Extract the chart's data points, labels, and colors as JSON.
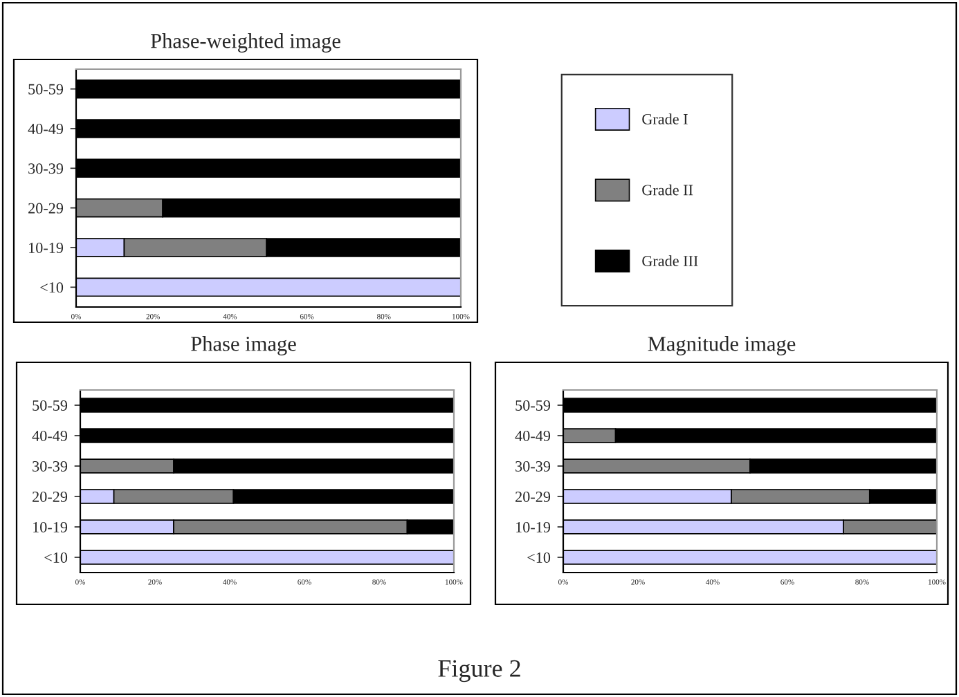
{
  "chart_data": [
    {
      "type": "bar",
      "orientation": "horizontal",
      "stacked": true,
      "title": "Phase-weighted image",
      "categories": [
        "50-59",
        "40-49",
        "30-39",
        "20-29",
        "10-19",
        "<10"
      ],
      "series": [
        {
          "name": "Grade I",
          "color": "#ccccff",
          "values": [
            0,
            0,
            0,
            0,
            12.5,
            100
          ]
        },
        {
          "name": "Grade II",
          "color": "#808080",
          "values": [
            0,
            0,
            0,
            22.5,
            37,
            0
          ]
        },
        {
          "name": "Grade III",
          "color": "#000000",
          "values": [
            100,
            100,
            100,
            77.5,
            50.5,
            0
          ]
        }
      ],
      "xlim": [
        0,
        100
      ],
      "xticks": [
        {
          "value": 0,
          "label": "0%"
        },
        {
          "value": 20,
          "label": "20%"
        },
        {
          "value": 40,
          "label": "40%"
        },
        {
          "value": 60,
          "label": "60%"
        },
        {
          "value": 80,
          "label": "80%"
        },
        {
          "value": 100,
          "label": "100%"
        }
      ],
      "grid": false,
      "legend": "right"
    },
    {
      "type": "bar",
      "orientation": "horizontal",
      "stacked": true,
      "title": "Phase image",
      "categories": [
        "50-59",
        "40-49",
        "30-39",
        "20-29",
        "10-19",
        "<10"
      ],
      "series": [
        {
          "color": "#ccccff",
          "values": [
            0,
            0,
            0,
            9,
            25,
            100
          ]
        },
        {
          "color": "#808080",
          "values": [
            0,
            0,
            25,
            32,
            62.5,
            0
          ]
        },
        {
          "color": "#000000",
          "values": [
            100,
            100,
            75,
            59,
            12.5,
            0
          ]
        }
      ],
      "xlim": [
        0,
        100
      ],
      "xticks": [
        {
          "value": 0,
          "label": "0%"
        },
        {
          "value": 20,
          "label": "20%"
        },
        {
          "value": 40,
          "label": "40%"
        },
        {
          "value": 60,
          "label": "60%"
        },
        {
          "value": 80,
          "label": "80%"
        },
        {
          "value": 100,
          "label": "100%"
        }
      ],
      "grid": false
    },
    {
      "type": "bar",
      "orientation": "horizontal",
      "stacked": true,
      "title": "Magnitude image",
      "categories": [
        "50-59",
        "40-49",
        "30-39",
        "20-29",
        "10-19",
        "<10"
      ],
      "series": [
        {
          "color": "#ccccff",
          "values": [
            0,
            0,
            0,
            45,
            75,
            100
          ]
        },
        {
          "color": "#808080",
          "values": [
            0,
            14,
            50,
            37,
            25,
            0
          ]
        },
        {
          "color": "#000000",
          "values": [
            100,
            86,
            50,
            18,
            0,
            0
          ]
        }
      ],
      "xlim": [
        0,
        100
      ],
      "xticks": [
        {
          "value": 0,
          "label": "0%"
        },
        {
          "value": 20,
          "label": "20%"
        },
        {
          "value": 40,
          "label": "40%"
        },
        {
          "value": 60,
          "label": "60%"
        },
        {
          "value": 80,
          "label": "80%"
        },
        {
          "value": 100,
          "label": "100%"
        }
      ],
      "grid": false,
      "annotations": [
        "Figure 2"
      ]
    }
  ]
}
